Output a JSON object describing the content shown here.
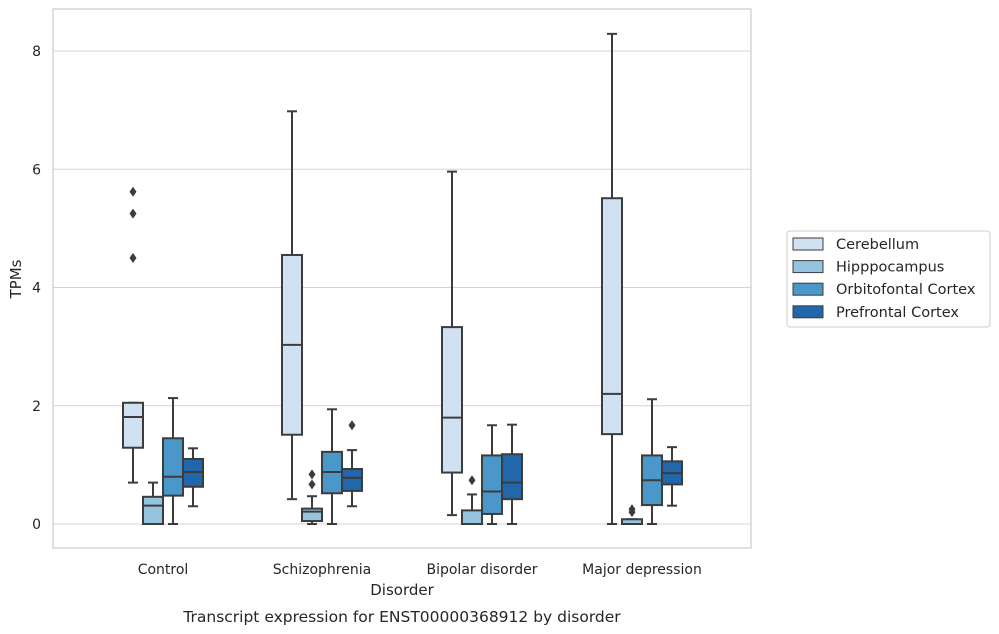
{
  "chart_data": {
    "type": "box",
    "caption": "Transcript expression for ENST00000368912 by disorder",
    "xlabel": "Disorder",
    "ylabel": "TPMs",
    "ylim": [
      -0.4,
      8.7
    ],
    "yticks": [
      0,
      2,
      4,
      6,
      8
    ],
    "grid": "horizontal",
    "legend_position": "right",
    "categories": [
      "Control",
      "Schizophrenia",
      "Bipolar disorder",
      "Major depression"
    ],
    "series": [
      {
        "name": "Cerebellum",
        "color": "#d0e1f2",
        "boxes": [
          {
            "whisker_low": 0.7,
            "q1": 1.29,
            "median": 1.81,
            "q3": 2.05,
            "whisker_high": 2.05,
            "outliers": [
              4.5,
              5.25,
              5.62
            ]
          },
          {
            "whisker_low": 0.42,
            "q1": 1.51,
            "median": 3.03,
            "q3": 4.55,
            "whisker_high": 6.98,
            "outliers": []
          },
          {
            "whisker_low": 0.15,
            "q1": 0.87,
            "median": 1.8,
            "q3": 3.33,
            "whisker_high": 5.96,
            "outliers": []
          },
          {
            "whisker_low": 0.0,
            "q1": 1.52,
            "median": 2.2,
            "q3": 5.51,
            "whisker_high": 8.29,
            "outliers": []
          }
        ]
      },
      {
        "name": "Hipppocampus",
        "color": "#94c4df",
        "boxes": [
          {
            "whisker_low": 0.0,
            "q1": 0.0,
            "median": 0.31,
            "q3": 0.46,
            "whisker_high": 0.7,
            "outliers": []
          },
          {
            "whisker_low": 0.0,
            "q1": 0.05,
            "median": 0.21,
            "q3": 0.26,
            "whisker_high": 0.47,
            "outliers": [
              0.67,
              0.84
            ]
          },
          {
            "whisker_low": 0.0,
            "q1": 0.0,
            "median": 0.0,
            "q3": 0.23,
            "whisker_high": 0.5,
            "outliers": [
              0.74
            ]
          },
          {
            "whisker_low": 0.0,
            "q1": 0.0,
            "median": 0.0,
            "q3": 0.08,
            "whisker_high": 0.08,
            "outliers": [
              0.2,
              0.25
            ]
          }
        ]
      },
      {
        "name": "Orbitofontal Cortex",
        "color": "#4a98c9",
        "boxes": [
          {
            "whisker_low": 0.0,
            "q1": 0.48,
            "median": 0.8,
            "q3": 1.45,
            "whisker_high": 2.13,
            "outliers": []
          },
          {
            "whisker_low": 0.0,
            "q1": 0.52,
            "median": 0.88,
            "q3": 1.22,
            "whisker_high": 1.94,
            "outliers": []
          },
          {
            "whisker_low": 0.0,
            "q1": 0.17,
            "median": 0.55,
            "q3": 1.16,
            "whisker_high": 1.67,
            "outliers": []
          },
          {
            "whisker_low": 0.0,
            "q1": 0.32,
            "median": 0.74,
            "q3": 1.16,
            "whisker_high": 2.11,
            "outliers": []
          }
        ]
      },
      {
        "name": "Prefrontal Cortex",
        "color": "#2266ac",
        "boxes": [
          {
            "whisker_low": 0.3,
            "q1": 0.63,
            "median": 0.88,
            "q3": 1.1,
            "whisker_high": 1.28,
            "outliers": []
          },
          {
            "whisker_low": 0.3,
            "q1": 0.56,
            "median": 0.78,
            "q3": 0.93,
            "whisker_high": 1.25,
            "outliers": [
              1.67
            ]
          },
          {
            "whisker_low": 0.0,
            "q1": 0.42,
            "median": 0.7,
            "q3": 1.18,
            "whisker_high": 1.68,
            "outliers": []
          },
          {
            "whisker_low": 0.31,
            "q1": 0.67,
            "median": 0.86,
            "q3": 1.06,
            "whisker_high": 1.3,
            "outliers": []
          }
        ]
      }
    ]
  }
}
